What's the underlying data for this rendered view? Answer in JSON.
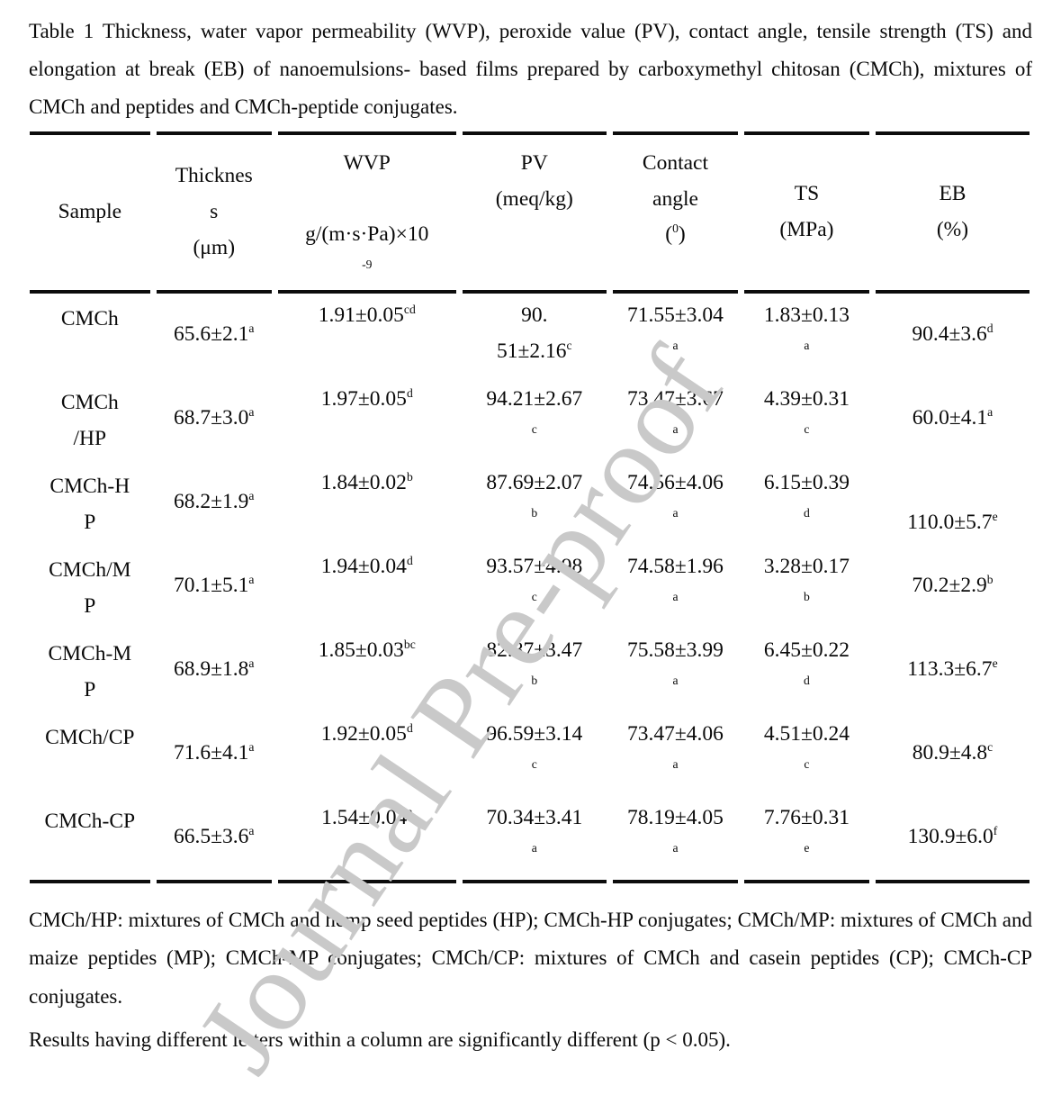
{
  "caption": "Table 1 Thickness, water vapor permeability (WVP), peroxide value (PV), contact angle, tensile strength (TS) and elongation at break (EB) of nanoemulsions- based films prepared by carboxymethyl chitosan (CMCh), mixtures of CMCh and peptides and CMCh-peptide conjugates.",
  "watermark": {
    "text": "Journal Pre-proof",
    "color": "#c9c9c9"
  },
  "table": {
    "headers": {
      "sample": "Sample",
      "thickness": "Thicknes\ns\n(μm)",
      "wvp": "WVP\n\ng/(m·s·Pa)×10\n^{-9}",
      "pv": "PV\n(meq/kg)",
      "contact": "Contact\nangle\n(^{0})",
      "ts": "TS\n(MPa)",
      "eb": "EB\n(%)"
    },
    "rows": [
      {
        "sample": "CMCh",
        "thickness": "65.6±2.1^{a}",
        "wvp": "1.91±0.05^{cd}",
        "pv": "90.\n51±2.16^{c}",
        "contact": "71.55±3.04\n^{a}",
        "ts": "1.83±0.13\n^{a}",
        "eb": "90.4±3.6^{d}"
      },
      {
        "sample": "CMCh\n/HP",
        "thickness": "68.7±3.0^{a}",
        "wvp": "1.97±0.05^{d}",
        "pv": "94.21±2.67\n^{c}",
        "contact": "73.47±3.67\n^{a}",
        "ts": "4.39±0.31\n^{c}",
        "eb": "60.0±4.1^{a}"
      },
      {
        "sample": "CMCh-H\nP",
        "thickness": "68.2±1.9^{a}",
        "wvp": "1.84±0.02^{b}",
        "pv": "87.69±2.07\n^{b}",
        "contact": "74.56±4.06\n^{a}",
        "ts": "6.15±0.39\n^{d}",
        "eb": "110.0±5.7^{e}"
      },
      {
        "sample": "CMCh/M\nP",
        "thickness": "70.1±5.1^{a}",
        "wvp": "1.94±0.04^{d}",
        "pv": "93.57±4.98\n^{c}",
        "contact": "74.58±1.96\n^{a}",
        "ts": "3.28±0.17\n^{b}",
        "eb": "70.2±2.9^{b}"
      },
      {
        "sample": "CMCh-M\nP",
        "thickness": "68.9±1.8^{a}",
        "wvp": "1.85±0.03^{bc}",
        "pv": "82.87±3.47\n^{b}",
        "contact": "75.58±3.99\n^{a}",
        "ts": "6.45±0.22\n^{d}",
        "eb": "113.3±6.7^{e}"
      },
      {
        "sample": "CMCh/CP",
        "thickness": "71.6±4.1^{a}",
        "wvp": "1.92±0.05^{d}",
        "pv": "96.59±3.14\n^{c}",
        "contact": "73.47±4.06\n^{a}",
        "ts": "4.51±0.24\n^{c}",
        "eb": "80.9±4.8^{c}"
      },
      {
        "sample": "CMCh-CP",
        "thickness": "66.5±3.6^{a}",
        "wvp": "1.54±0.04^{a}",
        "pv": "70.34±3.41\n^{a}",
        "contact": "78.19±4.05\n^{a}",
        "ts": "7.76±0.31\n^{e}",
        "eb": "130.9±6.0^{f}"
      }
    ]
  },
  "footnotes": {
    "definitions": "CMCh/HP: mixtures of CMCh and hemp seed peptides (HP); CMCh-HP conjugates; CMCh/MP: mixtures of CMCh and maize peptides (MP); CMCh-MP conjugates; CMCh/CP: mixtures of CMCh and casein peptides (CP); CMCh-CP conjugates.",
    "significance": "Results having different letters within a column are significantly different (p < 0.05)."
  }
}
